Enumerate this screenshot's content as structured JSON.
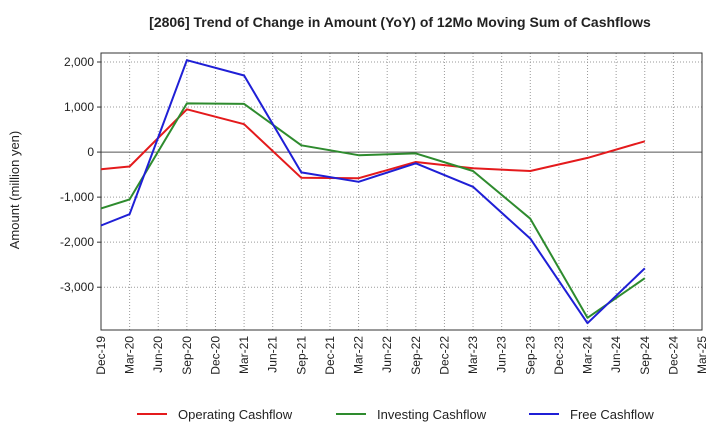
{
  "chart_data": {
    "type": "line",
    "title": "[2806]  Trend of Change in Amount (YoY) of 12Mo Moving Sum of Cashflows",
    "xlabel": "",
    "ylabel": "Amount (million yen)",
    "ylim": [
      -3950,
      2200
    ],
    "yticks": [
      2000,
      1000,
      0,
      -1000,
      -2000,
      -3000
    ],
    "ytick_labels": [
      "2,000",
      "1,000",
      "0",
      "-1,000",
      "-2,000",
      "-3,000"
    ],
    "categories": [
      "Dec-19",
      "Mar-20",
      "Jun-20",
      "Sep-20",
      "Dec-20",
      "Mar-21",
      "Jun-21",
      "Sep-21",
      "Dec-21",
      "Mar-22",
      "Jun-22",
      "Sep-22",
      "Dec-22",
      "Mar-23",
      "Jun-23",
      "Sep-23",
      "Dec-23",
      "Mar-24",
      "Jun-24",
      "Sep-24",
      "Dec-24",
      "Mar-25"
    ],
    "grid": true,
    "legend_position": "bottom",
    "series": [
      {
        "name": "Operating Cashflow",
        "color": "#e41a1c",
        "values": [
          -380,
          -320,
          null,
          950,
          null,
          620,
          null,
          -570,
          null,
          -580,
          null,
          -220,
          null,
          -360,
          null,
          -420,
          null,
          -130,
          null,
          240,
          null,
          null
        ]
      },
      {
        "name": "Investing Cashflow",
        "color": "#2e8b2e",
        "values": [
          -1250,
          -1050,
          null,
          1080,
          null,
          1070,
          null,
          150,
          null,
          -70,
          null,
          -30,
          null,
          -420,
          null,
          -1480,
          null,
          -3680,
          null,
          -2800,
          null,
          null
        ]
      },
      {
        "name": "Free Cashflow",
        "color": "#1f1fd6",
        "values": [
          -1630,
          -1380,
          null,
          2040,
          null,
          1700,
          null,
          -450,
          null,
          -660,
          null,
          -250,
          null,
          -770,
          null,
          -1920,
          null,
          -3800,
          null,
          -2580,
          null,
          null
        ]
      }
    ]
  }
}
